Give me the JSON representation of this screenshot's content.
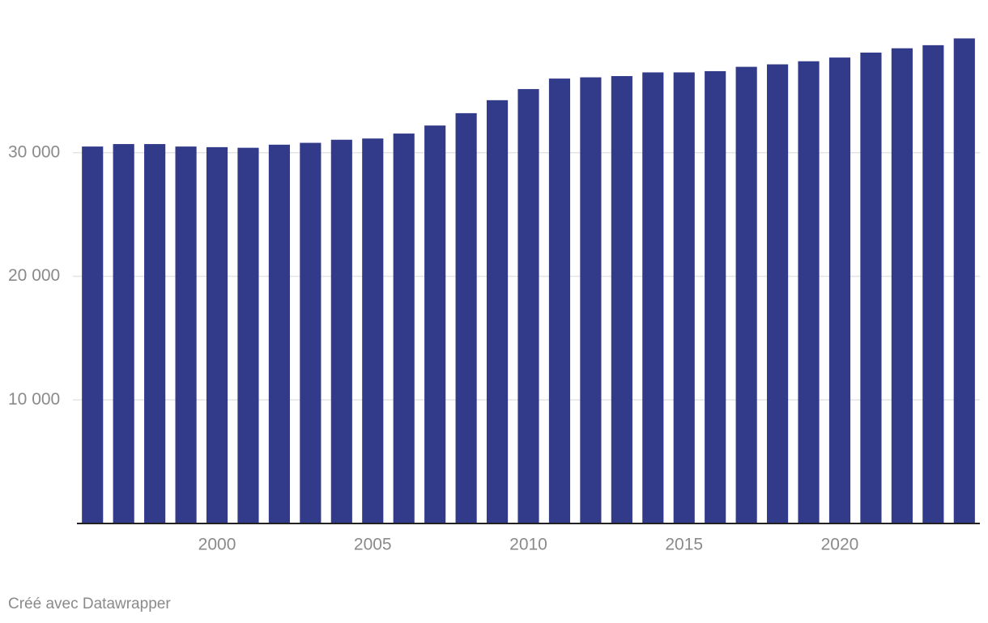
{
  "chart_data": {
    "type": "bar",
    "x": [
      1996,
      1997,
      1998,
      1999,
      2000,
      2001,
      2002,
      2003,
      2004,
      2005,
      2006,
      2007,
      2008,
      2009,
      2010,
      2011,
      2012,
      2013,
      2014,
      2015,
      2016,
      2017,
      2018,
      2019,
      2020,
      2021,
      2022,
      2023,
      2024
    ],
    "values": [
      30500,
      30700,
      30700,
      30500,
      30450,
      30400,
      30650,
      30800,
      31050,
      31150,
      31550,
      32200,
      33200,
      34250,
      35150,
      36000,
      36100,
      36200,
      36500,
      36500,
      36600,
      36950,
      37150,
      37400,
      37700,
      38100,
      38450,
      38700,
      39250
    ],
    "color": "#323a8a",
    "xlim": [
      1995.5,
      2024.5
    ],
    "xticks": [
      2000,
      2005,
      2010,
      2015,
      2020
    ],
    "ylim": [
      0,
      40000
    ],
    "yticks": [
      {
        "value": 10000,
        "label": "10 000"
      },
      {
        "value": 20000,
        "label": "20 000"
      },
      {
        "value": 30000,
        "label": "30 000"
      }
    ],
    "grid": true,
    "credit": "Créé avec Datawrapper"
  }
}
